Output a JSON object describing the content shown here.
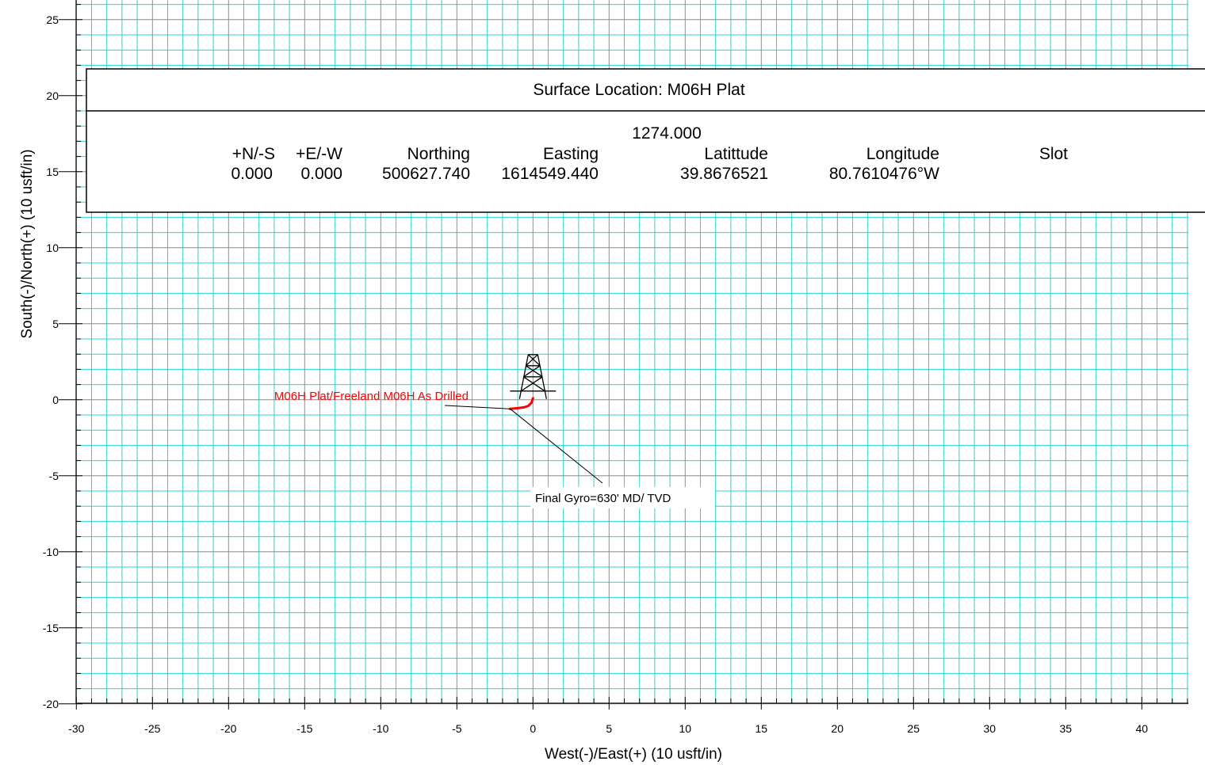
{
  "chart_data": {
    "type": "line",
    "title": "",
    "xlabel": "West(-)/East(+) (10 usft/in)",
    "ylabel": "South(-)/North(+) (10 usft/in)",
    "xlim": [
      -30,
      43
    ],
    "ylim": [
      -20,
      26
    ],
    "x_ticks": [
      -30,
      -25,
      -20,
      -15,
      -10,
      -5,
      0,
      5,
      10,
      15,
      20,
      25,
      30,
      35,
      40
    ],
    "y_ticks": [
      -20,
      -15,
      -10,
      -5,
      0,
      5,
      10,
      15,
      20,
      25
    ],
    "grid": true,
    "colors": {
      "grid_minor": "#22d6d6",
      "grid_major": "#8c8c8c",
      "well": "#ff0000",
      "frame": "#000000"
    },
    "series": [
      {
        "name": "M06H Plat/Freeland M06H As Drilled",
        "color": "#ff0000",
        "x": [
          0.0,
          -0.1,
          -0.3,
          -0.6,
          -1.0,
          -1.5
        ],
        "y": [
          0.1,
          -0.2,
          -0.4,
          -0.5,
          -0.55,
          -0.6
        ]
      }
    ],
    "markers": [
      {
        "type": "rig-icon",
        "x": 0,
        "y": 0
      }
    ],
    "annotations": [
      {
        "text": "Final Gyro=630' MD/ TVD",
        "x": -1.5,
        "y": -0.6
      }
    ]
  },
  "info_box": {
    "title": "Surface Location: M06H Plat",
    "elevation": "1274.000",
    "headers": [
      "+N/-S",
      "+E/-W",
      "Northing",
      "Easting",
      "Latittude",
      "Longitude",
      "Slot"
    ],
    "values": [
      "0.000",
      "0.000",
      "500627.740",
      "1614549.440",
      "39.8676521",
      "80.7610476°W",
      ""
    ]
  }
}
